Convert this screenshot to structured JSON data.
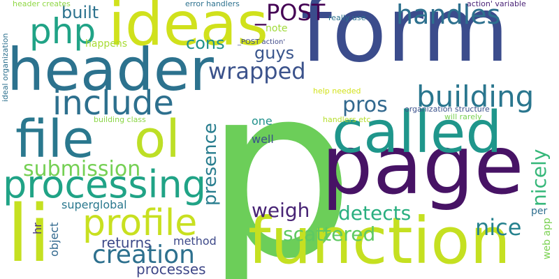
{
  "words": [
    {
      "text": "p",
      "color": "#6cce59"
    },
    {
      "text": "form",
      "color": "#3b4c8c"
    },
    {
      "text": "page",
      "color": "#471365"
    },
    {
      "text": "function",
      "color": "#c5e021"
    },
    {
      "text": "header",
      "color": "#2c728e"
    },
    {
      "text": "li",
      "color": "#c5e021"
    },
    {
      "text": "ideas",
      "color": "#d0e11c"
    },
    {
      "text": "called",
      "color": "#1f968b"
    },
    {
      "text": "file",
      "color": "#2a788e"
    },
    {
      "text": "ol",
      "color": "#bddf26"
    },
    {
      "text": "processing",
      "color": "#20a386"
    },
    {
      "text": "profile",
      "color": "#c8e020"
    },
    {
      "text": "php",
      "color": "#20a386"
    },
    {
      "text": "include",
      "color": "#2d708e"
    },
    {
      "text": "building",
      "color": "#2a768e"
    },
    {
      "text": "handles",
      "color": "#2d708e"
    },
    {
      "text": "_POST",
      "color": "#440154"
    },
    {
      "text": "wrapped",
      "color": "#3b528b"
    },
    {
      "text": "cons",
      "color": "#21918c"
    },
    {
      "text": "guys",
      "color": "#39558c"
    },
    {
      "text": "built",
      "color": "#2c728e"
    },
    {
      "text": "submission",
      "color": "#75d054"
    },
    {
      "text": "presence",
      "color": "#287d8e"
    },
    {
      "text": "nicely",
      "color": "#35b779"
    },
    {
      "text": "pros",
      "color": "#31688e"
    },
    {
      "text": "creation",
      "color": "#2d708e"
    },
    {
      "text": "nice",
      "color": "#26828e"
    },
    {
      "text": "detects",
      "color": "#29af7f"
    },
    {
      "text": "scattered",
      "color": "#5ec962"
    },
    {
      "text": "weigh",
      "color": "#482475"
    },
    {
      "text": "returns",
      "color": "#3e4a89"
    },
    {
      "text": "processes",
      "color": "#3f4788"
    },
    {
      "text": "superglobal",
      "color": "#2a788e"
    },
    {
      "text": "object",
      "color": "#31688e"
    },
    {
      "text": "method",
      "color": "#3e4989"
    },
    {
      "text": "hr",
      "color": "#46337f"
    },
    {
      "text": "one",
      "color": "#21918c"
    },
    {
      "text": "well",
      "color": "#3b528b"
    },
    {
      "text": "note",
      "color": "#a0da39"
    },
    {
      "text": "happens",
      "color": "#a8db34"
    },
    {
      "text": "per",
      "color": "#2e6e8e"
    },
    {
      "text": "web app",
      "color": "#7ad151"
    },
    {
      "text": "header creates",
      "color": "#8fd744"
    },
    {
      "text": "error handlers",
      "color": "#2c718e"
    },
    {
      "text": "really use",
      "color": "#2c738e"
    },
    {
      "text": "action' variable",
      "color": "#4a2377"
    },
    {
      "text": "_POST action'",
      "color": "#3e4989"
    },
    {
      "text": "ideal organization",
      "color": "#2d708e"
    },
    {
      "text": "building class",
      "color": "#8bd646"
    },
    {
      "text": "help needed",
      "color": "#d2e21b"
    },
    {
      "text": "organization structure",
      "color": "#3b518b"
    },
    {
      "text": "handlers etc",
      "color": "#b5de2b"
    },
    {
      "text": "will rarely",
      "color": "#7ad151"
    }
  ]
}
